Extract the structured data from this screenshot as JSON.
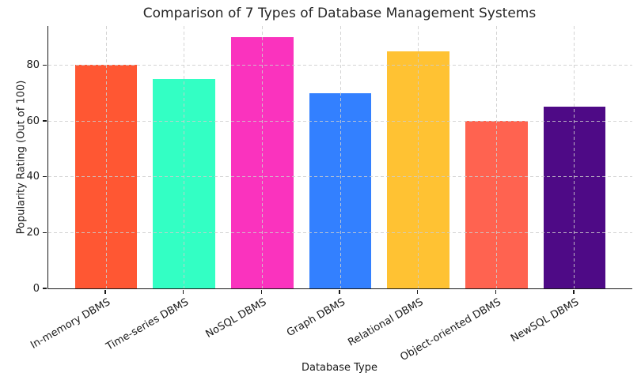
{
  "chart_data": {
    "type": "bar",
    "title": "Comparison of 7 Types of Database Management Systems",
    "xlabel": "Database Type",
    "ylabel": "Popularity Rating (Out of 100)",
    "categories": [
      "In-memory DBMS",
      "Time-series DBMS",
      "NoSQL DBMS",
      "Graph DBMS",
      "Relational DBMS",
      "Object-oriented DBMS",
      "NewSQL DBMS"
    ],
    "values": [
      80,
      75,
      90,
      70,
      85,
      60,
      65
    ],
    "bar_colors": [
      "#FF5733",
      "#33FFC4",
      "#FA33BE",
      "#3380FF",
      "#FFC233",
      "#FF6350",
      "#4E0A86"
    ],
    "yticks": [
      0,
      20,
      40,
      60,
      80
    ],
    "ylim": [
      0,
      94
    ],
    "x_tick_rotation_deg": 30,
    "grid": "dashed gridlines on both axes, drawn over bars",
    "legend": "none",
    "text_color": "#1a1a1a",
    "background_color": "#ffffff",
    "grid_color": "#cdcdcd"
  }
}
